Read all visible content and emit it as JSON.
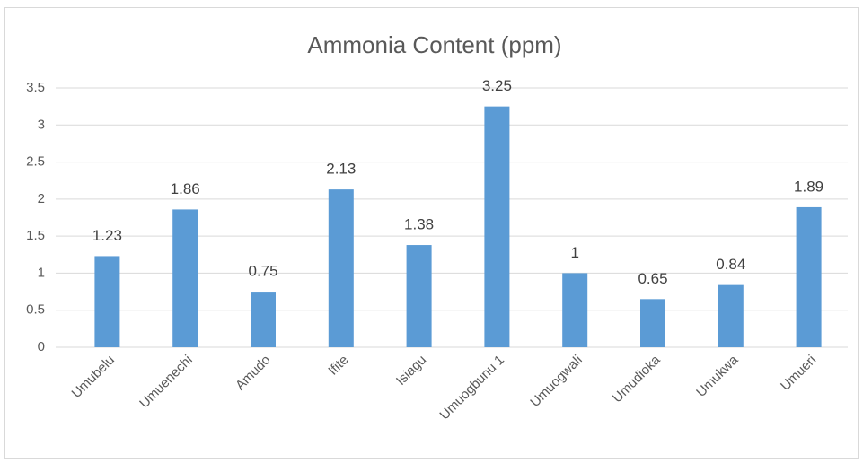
{
  "chart_data": {
    "type": "bar",
    "title": "Ammonia Content (ppm)",
    "categories": [
      "Umubelu",
      "Umuenechi",
      "Amudo",
      "Ifite",
      "Isiagu",
      "Umuogbunu 1",
      "Umuogwali",
      "Umudioka",
      "Umukwa",
      "Umueri"
    ],
    "values": [
      1.23,
      1.86,
      0.75,
      2.13,
      1.38,
      3.25,
      1,
      0.65,
      0.84,
      1.89
    ],
    "color": "#5b9bd5",
    "ylim": [
      0,
      3.5
    ],
    "yticks": [
      0,
      0.5,
      1,
      1.5,
      2,
      2.5,
      3,
      3.5
    ],
    "grid": true
  }
}
